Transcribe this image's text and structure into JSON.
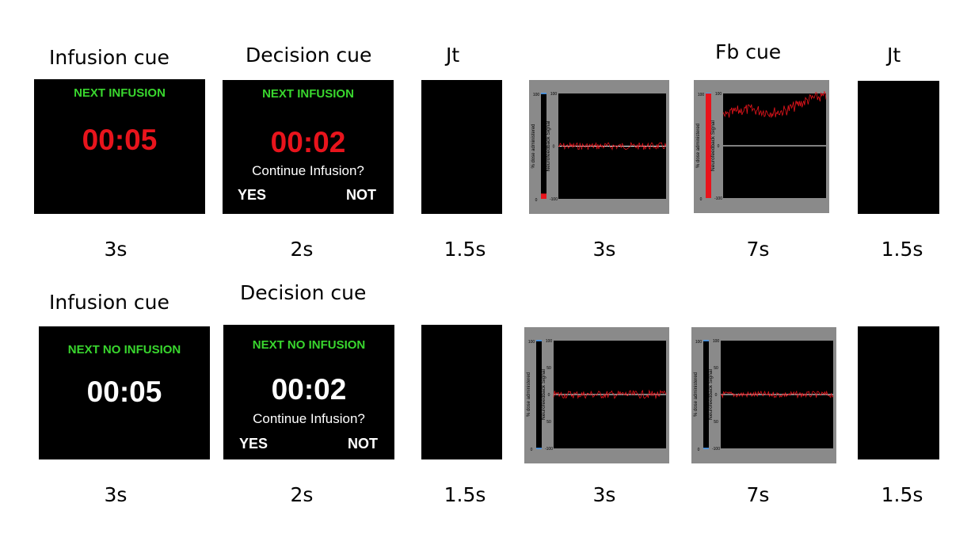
{
  "rows": [
    {
      "labels": {
        "infusion_cue": "Infusion cue",
        "decision_cue": "Decision cue",
        "jt1": "Jt",
        "fb_cue": "Fb cue",
        "jt2": "Jt"
      },
      "infusion_screen": {
        "header": "NEXT INFUSION",
        "timer": "00:05",
        "timer_color": "#e8141c"
      },
      "decision_screen": {
        "header": "NEXT INFUSION",
        "timer": "00:02",
        "timer_color": "#e8141c",
        "question": "Continue Infusion?",
        "yes": "YES",
        "no": "NOT"
      },
      "durations": [
        "3s",
        "2s",
        "1.5s",
        "3s",
        "7s",
        "1.5s"
      ]
    },
    {
      "labels": {
        "infusion_cue": "Infusion cue",
        "decision_cue": "Decision cue"
      },
      "infusion_screen": {
        "header": "NEXT NO INFUSION",
        "timer": "00:05",
        "timer_color": "#ffffff"
      },
      "decision_screen": {
        "header": "NEXT NO INFUSION",
        "timer": "00:02",
        "timer_color": "#ffffff",
        "question": "Continue Infusion?",
        "yes": "YES",
        "no": "NOT"
      },
      "durations": [
        "3s",
        "2s",
        "1.5s",
        "3s",
        "7s",
        "1.5s"
      ]
    }
  ],
  "feedback_panel": {
    "dose_label": "% dose administered",
    "signal_label": "Neurofeedback Signal",
    "dose_ticks": [
      "100",
      "0"
    ],
    "signal_ticks": [
      "100",
      "50",
      "0",
      "50",
      "-100"
    ],
    "signal_ticks_row1": [
      "100",
      "0",
      "-100"
    ]
  },
  "colors": {
    "green_text": "#39d62e",
    "red": "#e8141c",
    "panel_gray": "#8a8a8a"
  }
}
